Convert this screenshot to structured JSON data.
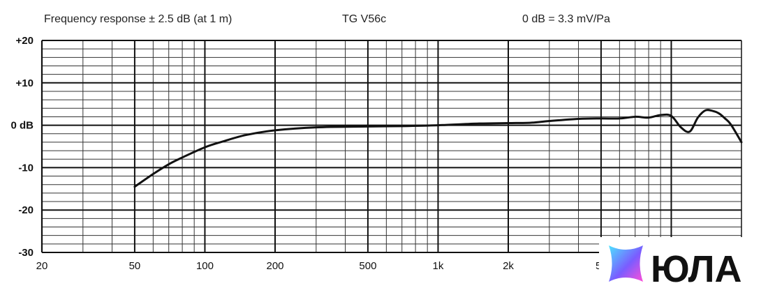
{
  "header": {
    "spec": "Frequency response ± 2.5 dB (at 1 m)",
    "model": "TG V56c",
    "sensitivity": "0 dB =  3.3 mV/Pa"
  },
  "logo": {
    "text": "ЮЛА",
    "colors": [
      "#4de3ff",
      "#7a5cff",
      "#ff4fd8"
    ]
  },
  "chart_data": {
    "type": "line",
    "title": "",
    "xlabel": "",
    "ylabel": "",
    "xscale": "log",
    "xlim": [
      20,
      20000
    ],
    "ylim": [
      -30,
      20
    ],
    "grid": true,
    "xticks": [
      {
        "value": 20,
        "label": "20"
      },
      {
        "value": 50,
        "label": "50"
      },
      {
        "value": 100,
        "label": "100"
      },
      {
        "value": 200,
        "label": "200"
      },
      {
        "value": 500,
        "label": "500"
      },
      {
        "value": 1000,
        "label": "1k"
      },
      {
        "value": 2000,
        "label": "2k"
      },
      {
        "value": 5000,
        "label": "5k"
      }
    ],
    "yticks": [
      {
        "value": 20,
        "label": "+20"
      },
      {
        "value": 10,
        "label": "+10"
      },
      {
        "value": 0,
        "label": "0 dB"
      },
      {
        "value": -10,
        "label": "-10"
      },
      {
        "value": -20,
        "label": "-20"
      },
      {
        "value": -30,
        "label": "-30"
      }
    ],
    "series": [
      {
        "color": "#111111",
        "x": [
          50,
          60,
          70,
          80,
          100,
          120,
          150,
          200,
          300,
          500,
          700,
          1000,
          1500,
          2000,
          2500,
          3000,
          4000,
          5000,
          6000,
          7000,
          8000,
          9000,
          10000,
          11000,
          12000,
          13000,
          14000,
          15000,
          16000,
          17000,
          18000,
          20000
        ],
        "y": [
          -14.5,
          -11.5,
          -9.2,
          -7.6,
          -5.2,
          -3.8,
          -2.3,
          -1.2,
          -0.5,
          -0.3,
          -0.2,
          0,
          0.4,
          0.5,
          0.6,
          1.0,
          1.5,
          1.6,
          1.6,
          2.0,
          1.8,
          2.4,
          2.2,
          -0.5,
          -1.5,
          1.8,
          3.5,
          3.4,
          2.8,
          1.6,
          0.2,
          -4.0
        ]
      }
    ]
  }
}
